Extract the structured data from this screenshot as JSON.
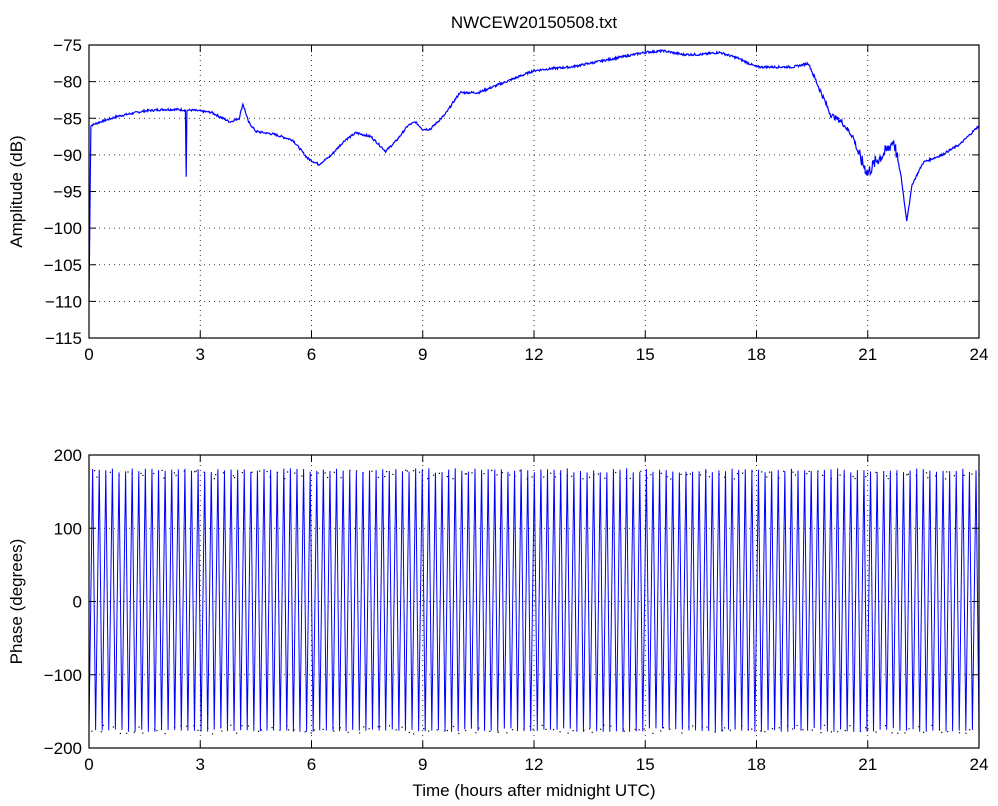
{
  "figure": {
    "title": "NWCEW20150508.txt"
  },
  "chart_data": [
    {
      "type": "line",
      "title": "NWCEW20150508.txt",
      "xlabel": "",
      "ylabel": "Amplitude (dB)",
      "xlim": [
        0,
        24
      ],
      "ylim": [
        -115,
        -75
      ],
      "xticks": [
        0,
        3,
        6,
        9,
        12,
        15,
        18,
        21,
        24
      ],
      "yticks": [
        -115,
        -110,
        -105,
        -100,
        -95,
        -90,
        -85,
        -80,
        -75
      ],
      "grid": true,
      "series": [
        {
          "color": "#0000ff",
          "x": [
            0,
            0.05,
            0.3,
            0.8,
            1.5,
            2.0,
            2.4,
            2.6,
            2.62,
            2.64,
            2.66,
            2.8,
            3.3,
            3.8,
            4.05,
            4.15,
            4.3,
            4.5,
            5.0,
            5.5,
            5.9,
            6.2,
            6.5,
            6.9,
            7.2,
            7.6,
            7.8,
            8.0,
            8.3,
            8.6,
            8.8,
            9.0,
            9.2,
            9.6,
            10.0,
            10.5,
            11.0,
            11.5,
            12.0,
            12.5,
            13.0,
            13.5,
            14.0,
            14.5,
            15.0,
            15.5,
            16.0,
            16.5,
            17.0,
            17.5,
            18.0,
            18.5,
            19.0,
            19.4,
            19.7,
            20.0,
            20.3,
            20.6,
            20.8,
            21.0,
            21.2,
            21.5,
            21.7,
            21.9,
            22.05,
            22.2,
            22.5,
            23.0,
            23.5,
            24.0
          ],
          "values": [
            -110,
            -86,
            -85.5,
            -84.7,
            -84.0,
            -83.8,
            -83.8,
            -83.9,
            -93.0,
            -84.0,
            -83.9,
            -83.9,
            -84.2,
            -85.5,
            -85.0,
            -83.0,
            -85.5,
            -86.8,
            -87.2,
            -88.0,
            -90.5,
            -91.3,
            -90.2,
            -88.0,
            -87.0,
            -87.5,
            -88.5,
            -89.5,
            -88.0,
            -86.0,
            -85.5,
            -86.5,
            -86.5,
            -84.5,
            -81.5,
            -81.5,
            -80.5,
            -79.5,
            -78.5,
            -78.2,
            -78.0,
            -77.5,
            -77.0,
            -76.5,
            -76.0,
            -75.8,
            -76.3,
            -76.3,
            -76.0,
            -76.8,
            -78.0,
            -78.0,
            -78.0,
            -77.5,
            -81.0,
            -84.5,
            -85.5,
            -87.5,
            -90.5,
            -92.5,
            -91.0,
            -89.5,
            -88.0,
            -93.0,
            -99.0,
            -94.0,
            -91.0,
            -90.0,
            -88.5,
            -86.0
          ]
        }
      ]
    },
    {
      "type": "line",
      "title": "",
      "xlabel": "Time (hours after midnight UTC)",
      "ylabel": "Phase (degrees)",
      "xlim": [
        0,
        24
      ],
      "ylim": [
        -200,
        200
      ],
      "xticks": [
        0,
        3,
        6,
        9,
        12,
        15,
        18,
        21,
        24
      ],
      "yticks": [
        -200,
        -100,
        0,
        100,
        200
      ],
      "grid": true,
      "wrap_range": [
        -180,
        180
      ],
      "cycles": 135,
      "series": [
        {
          "color": "#0000ff"
        }
      ]
    }
  ]
}
